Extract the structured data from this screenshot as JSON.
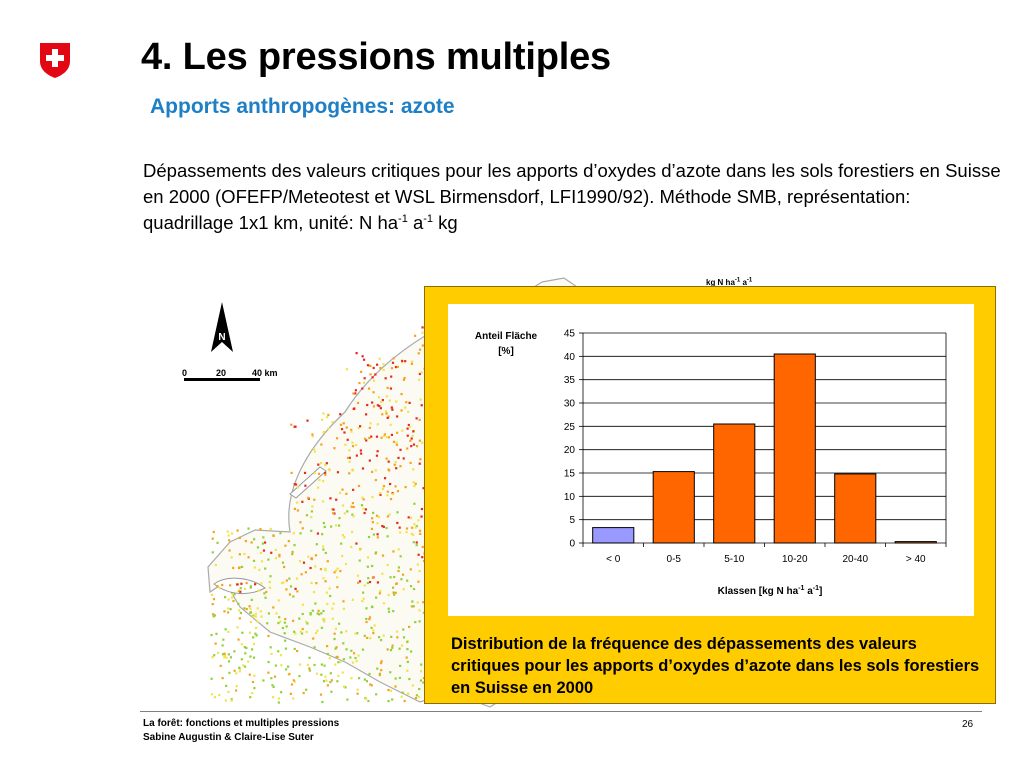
{
  "slide": {
    "title": "4. Les pressions multiples",
    "subtitle": "Apports anthropogènes: azote",
    "intro": {
      "text": "Dépassements des valeurs critiques pour les apports d’oxydes d’azote dans les sols forestiers en Suisse en 2000 (OFEFP/Meteotest et WSL Birmensdorf, LFI1990/92). Méthode SMB, représentation: quadrillage 1x1 km, unité: N ha",
      "exp1": "-1",
      "mid": " a",
      "exp2": "-1",
      "end": " kg"
    },
    "caption": "Distribution de la fréquence des dépassements des valeurs critiques pour les apports d’oxydes d’azote dans les sols forestiers en Suisse en 2000",
    "footer": {
      "line1": "La forêt: fonctions et multiples pressions",
      "line2": "Sabine Augustin & Claire-Lise Suter",
      "page": "26"
    },
    "logo_icon": "swiss-cross-shield-icon"
  },
  "map": {
    "north_label": "N",
    "scale": [
      "0",
      "20",
      "40 km"
    ],
    "legend": {
      "text": "kg N ha",
      "exp1": "-1",
      "mid": " a",
      "exp2": "-1"
    },
    "colors": {
      "high": "#e8281c",
      "mid": "#f6a21e",
      "low": "#f2e34a",
      "green": "#8fd13a",
      "outline": "#aaaaaa"
    }
  },
  "chart_data": {
    "type": "bar",
    "ylabel_line1": "Anteil Fläche",
    "ylabel_line2": "[%]",
    "xlabel": {
      "text": "Klassen [kg N ha",
      "exp1": "-1",
      "mid": " a",
      "exp2": "-1",
      "end": "]"
    },
    "categories": [
      "< 0",
      "0-5",
      "5-10",
      "10-20",
      "20-40",
      "> 40"
    ],
    "values": [
      3.3,
      15.3,
      25.5,
      40.5,
      14.8,
      0.3
    ],
    "colors": [
      "#9999ff",
      "#ff6600",
      "#ff6600",
      "#ff6600",
      "#ff6600",
      "#ff6600"
    ],
    "ylim": [
      0,
      45
    ],
    "yticks": [
      0,
      5,
      10,
      15,
      20,
      25,
      30,
      35,
      40,
      45
    ],
    "grid": true
  },
  "colors": {
    "accent": "#1f7fc6",
    "panel": "#ffcc00",
    "swiss_red": "#e30613"
  }
}
